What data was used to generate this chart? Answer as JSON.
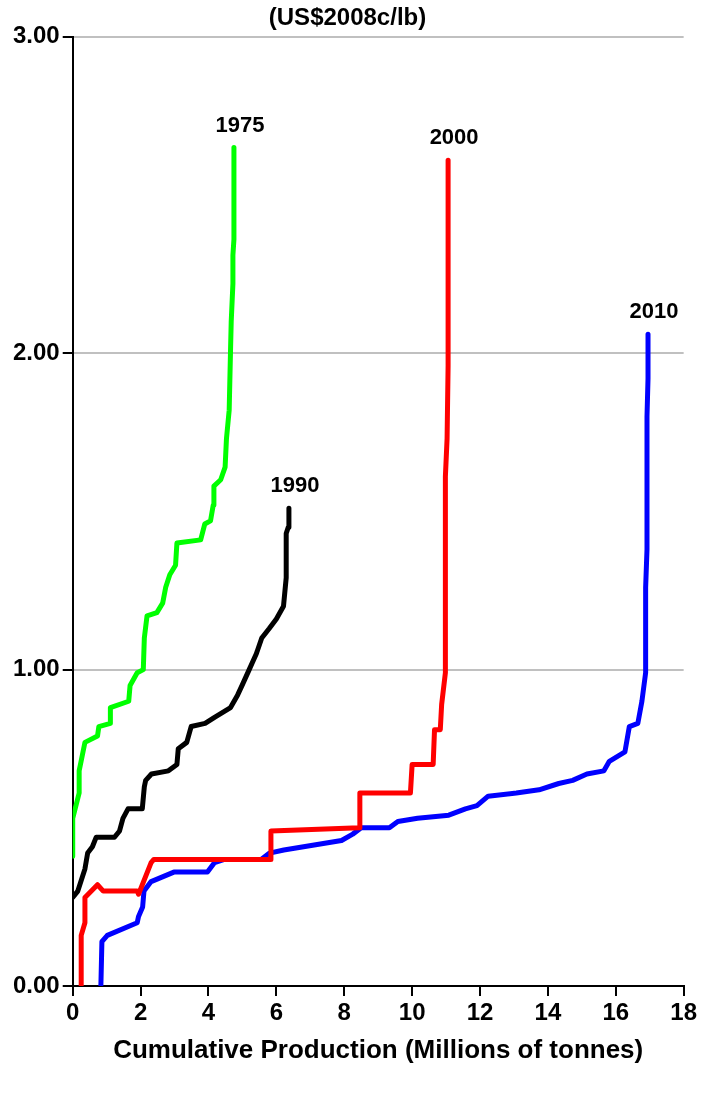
{
  "chart_data": {
    "type": "line",
    "title": "(US$2008c/lb)",
    "xlabel": "Cumulative Production (Millions of tonnes)",
    "xlim": [
      0,
      18
    ],
    "xticks": [
      0,
      2,
      4,
      6,
      8,
      10,
      12,
      14,
      16,
      18
    ],
    "ylim": [
      0,
      3
    ],
    "yticks": [
      {
        "value": 0,
        "label": "0.00"
      },
      {
        "value": 1,
        "label": "1.00"
      },
      {
        "value": 2,
        "label": "2.00"
      },
      {
        "value": 3,
        "label": "3.00"
      }
    ],
    "grid": "y",
    "legend": false,
    "marker": "none",
    "line_style": "solid",
    "series": [
      {
        "name": "1975",
        "color": "#00ff00",
        "x": [
          0,
          0,
          0.19,
          0.19,
          0.36,
          0.73,
          0.77,
          1.11,
          1.11,
          1.65,
          1.69,
          1.9,
          2.08,
          2.11,
          2.19,
          2.48,
          2.65,
          2.74,
          2.86,
          3.03,
          3.07,
          3.77,
          3.89,
          4.06,
          4.14,
          4.16,
          4.36,
          4.49,
          4.53,
          4.61,
          4.65,
          4.67,
          4.72,
          4.72,
          4.75,
          4.75
        ],
        "values": [
          0.41,
          0.53,
          0.61,
          0.68,
          0.77,
          0.79,
          0.82,
          0.83,
          0.88,
          0.9,
          0.95,
          0.99,
          1.0,
          1.1,
          1.17,
          1.18,
          1.21,
          1.26,
          1.3,
          1.33,
          1.4,
          1.41,
          1.46,
          1.47,
          1.52,
          1.58,
          1.6,
          1.64,
          1.73,
          1.82,
          2.01,
          2.1,
          2.22,
          2.31,
          2.36,
          2.65
        ]
      },
      {
        "name": "1990",
        "color": "#000000",
        "x": [
          0,
          0.15,
          0.36,
          0.44,
          0.58,
          0.69,
          1.23,
          1.38,
          1.48,
          1.63,
          2.05,
          2.11,
          2.15,
          2.32,
          2.82,
          3.07,
          3.11,
          3.36,
          3.49,
          3.9,
          4.19,
          4.65,
          4.86,
          4.99,
          5.2,
          5.41,
          5.57,
          5.79,
          6.0,
          6.21,
          6.29,
          6.29,
          6.35,
          6.37
        ],
        "values": [
          0.28,
          0.3,
          0.37,
          0.42,
          0.44,
          0.47,
          0.47,
          0.49,
          0.53,
          0.56,
          0.56,
          0.63,
          0.65,
          0.67,
          0.68,
          0.7,
          0.75,
          0.77,
          0.82,
          0.83,
          0.85,
          0.88,
          0.92,
          0.95,
          1.0,
          1.05,
          1.1,
          1.13,
          1.16,
          1.2,
          1.29,
          1.43,
          1.45,
          1.51
        ]
      },
      {
        "name": "2000",
        "color": "#ff0000",
        "x": [
          0.25,
          0.25,
          0.36,
          0.36,
          0.73,
          0.9,
          1.9,
          1.94,
          2.31,
          2.39,
          5.82,
          5.84,
          8.44,
          8.46,
          9.95,
          10.0,
          10.62,
          10.66,
          10.83,
          10.87,
          10.98,
          10.98,
          11.03,
          11.06,
          11.06
        ],
        "values": [
          0,
          0.16,
          0.2,
          0.28,
          0.32,
          0.3,
          0.3,
          0.29,
          0.39,
          0.4,
          0.4,
          0.49,
          0.5,
          0.61,
          0.61,
          0.7,
          0.7,
          0.81,
          0.81,
          0.89,
          0.99,
          1.61,
          1.73,
          1.96,
          2.61
        ]
      },
      {
        "name": "2010",
        "color": "#0000ff",
        "x": [
          0.83,
          0.86,
          1.02,
          1.9,
          1.94,
          2.06,
          2.1,
          2.31,
          2.98,
          3.97,
          4.18,
          4.47,
          5.55,
          5.8,
          6.22,
          7.92,
          8.25,
          8.5,
          9.33,
          9.58,
          10.16,
          11.08,
          11.57,
          11.91,
          12.24,
          13.07,
          13.74,
          14.32,
          14.73,
          15.15,
          15.65,
          15.81,
          16.27,
          16.4,
          16.65,
          16.77,
          16.88,
          16.88,
          16.92,
          16.92,
          16.95,
          16.95
        ],
        "values": [
          0,
          0.14,
          0.16,
          0.2,
          0.22,
          0.25,
          0.3,
          0.33,
          0.36,
          0.36,
          0.39,
          0.4,
          0.4,
          0.42,
          0.43,
          0.46,
          0.48,
          0.5,
          0.5,
          0.52,
          0.53,
          0.54,
          0.56,
          0.57,
          0.6,
          0.61,
          0.62,
          0.64,
          0.65,
          0.67,
          0.68,
          0.71,
          0.74,
          0.82,
          0.83,
          0.9,
          0.99,
          1.26,
          1.38,
          1.8,
          1.92,
          2.06
        ]
      }
    ]
  }
}
